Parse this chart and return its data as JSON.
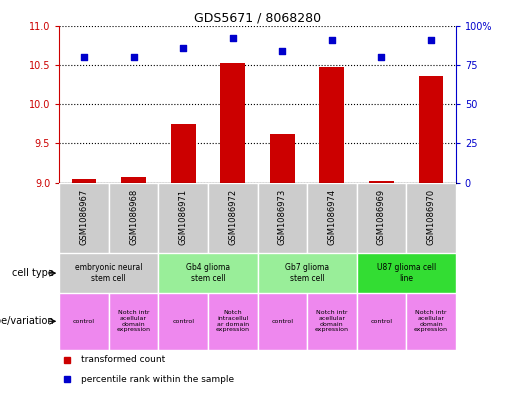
{
  "title": "GDS5671 / 8068280",
  "samples": [
    "GSM1086967",
    "GSM1086968",
    "GSM1086971",
    "GSM1086972",
    "GSM1086973",
    "GSM1086974",
    "GSM1086969",
    "GSM1086970"
  ],
  "transformed_counts": [
    9.05,
    9.07,
    9.75,
    10.52,
    9.62,
    10.47,
    9.02,
    10.36
  ],
  "percentile_ranks": [
    80,
    80,
    86,
    92,
    84,
    91,
    80,
    91
  ],
  "ylim_left": [
    9,
    11
  ],
  "ylim_right": [
    0,
    100
  ],
  "yticks_left": [
    9,
    9.5,
    10,
    10.5,
    11
  ],
  "yticks_right": [
    0,
    25,
    50,
    75,
    100
  ],
  "cell_type_groups": [
    {
      "label": "embryonic neural\nstem cell",
      "start": 0,
      "end": 1,
      "color": "#cccccc"
    },
    {
      "label": "Gb4 glioma\nstem cell",
      "start": 2,
      "end": 3,
      "color": "#99ee99"
    },
    {
      "label": "Gb7 glioma\nstem cell",
      "start": 4,
      "end": 5,
      "color": "#99ee99"
    },
    {
      "label": "U87 glioma cell\nline",
      "start": 6,
      "end": 7,
      "color": "#33dd33"
    }
  ],
  "genotype_groups": [
    {
      "label": "control",
      "start": 0,
      "end": 0,
      "color": "#ee88ee"
    },
    {
      "label": "Notch intr\nacellular\ndomain\nexpression",
      "start": 1,
      "end": 1,
      "color": "#ee88ee"
    },
    {
      "label": "control",
      "start": 2,
      "end": 2,
      "color": "#ee88ee"
    },
    {
      "label": "Notch\nintracellul\nar domain\nexpression",
      "start": 3,
      "end": 3,
      "color": "#ee88ee"
    },
    {
      "label": "control",
      "start": 4,
      "end": 4,
      "color": "#ee88ee"
    },
    {
      "label": "Notch intr\nacellular\ndomain\nexpression",
      "start": 5,
      "end": 5,
      "color": "#ee88ee"
    },
    {
      "label": "control",
      "start": 6,
      "end": 6,
      "color": "#ee88ee"
    },
    {
      "label": "Notch intr\nacellular\ndomain\nexpression",
      "start": 7,
      "end": 7,
      "color": "#ee88ee"
    }
  ],
  "bar_color": "#cc0000",
  "scatter_color": "#0000cc",
  "left_axis_color": "#cc0000",
  "right_axis_color": "#0000cc",
  "sample_box_color": "#cccccc",
  "legend_items": [
    {
      "label": "transformed count",
      "color": "#cc0000"
    },
    {
      "label": "percentile rank within the sample",
      "color": "#0000cc"
    }
  ],
  "fig_width": 5.15,
  "fig_height": 3.93,
  "dpi": 100
}
